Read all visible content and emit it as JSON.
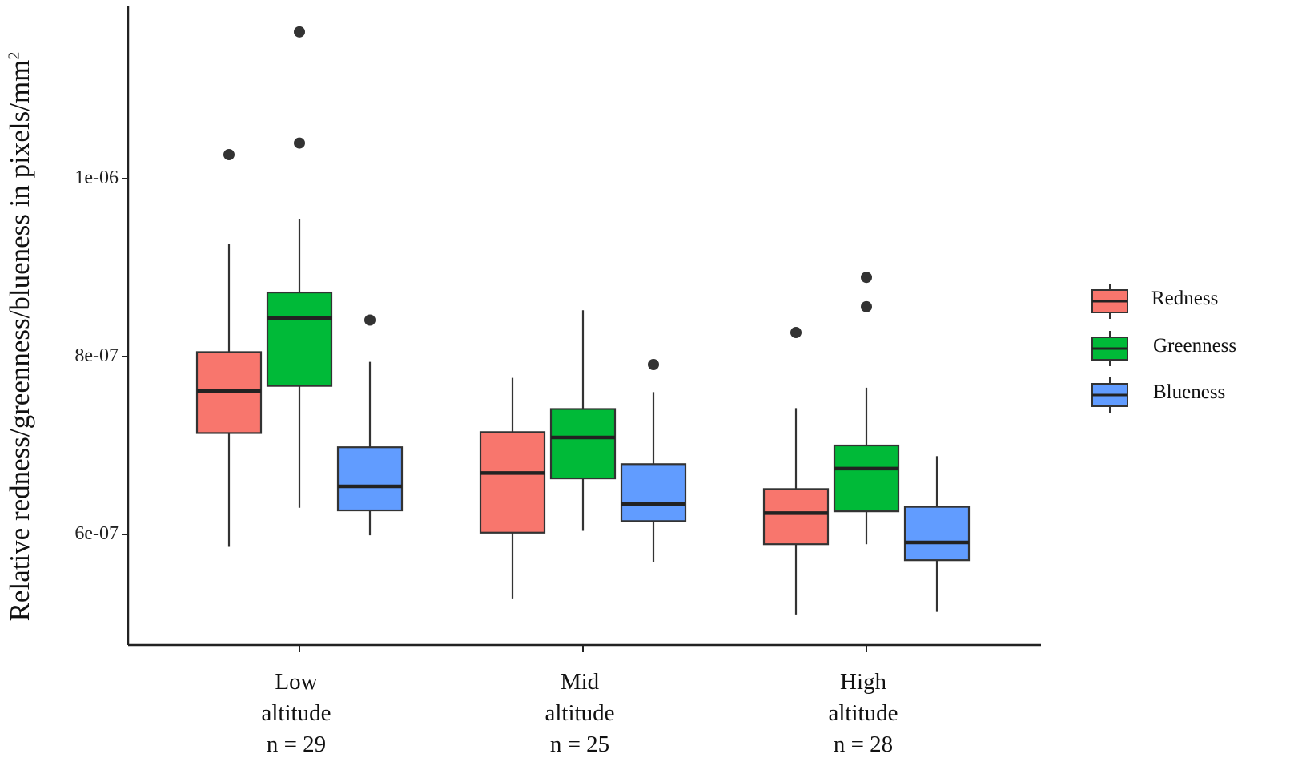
{
  "chart_data": {
    "type": "box",
    "title": "",
    "ylabel": "Relative redness/greenness/blueness in pixels/mm",
    "ylabel_superscript": "2",
    "ylim": [
      4.8e-07,
      1.2e-06
    ],
    "yticks": [
      {
        "value": 6e-07,
        "label": "6e-07"
      },
      {
        "value": 8e-07,
        "label": "8e-07"
      },
      {
        "value": 1e-06,
        "label": "1e-06"
      }
    ],
    "categories": [
      {
        "name": "Low",
        "line2": "altitude",
        "line3": "n = 29"
      },
      {
        "name": "Mid",
        "line2": "altitude",
        "line3": "n = 25"
      },
      {
        "name": "High",
        "line2": "altitude",
        "line3": "n = 28"
      }
    ],
    "series": [
      {
        "name": "Redness",
        "color": "#F8766D",
        "boxes": [
          {
            "min": 5.86e-07,
            "q1": 7.14e-07,
            "median": 7.61e-07,
            "q3": 8.05e-07,
            "max": 9.27e-07,
            "outliers": [
              1.027e-06
            ]
          },
          {
            "min": 5.28e-07,
            "q1": 6.02e-07,
            "median": 6.69e-07,
            "q3": 7.15e-07,
            "max": 7.76e-07,
            "outliers": []
          },
          {
            "min": 5.1e-07,
            "q1": 5.89e-07,
            "median": 6.24e-07,
            "q3": 6.51e-07,
            "max": 7.42e-07,
            "outliers": [
              8.27e-07
            ]
          }
        ]
      },
      {
        "name": "Greenness",
        "color": "#00BA38",
        "boxes": [
          {
            "min": 6.3e-07,
            "q1": 7.67e-07,
            "median": 8.43e-07,
            "q3": 8.72e-07,
            "max": 9.55e-07,
            "outliers": [
              1.04e-06,
              1.165e-06
            ]
          },
          {
            "min": 6.04e-07,
            "q1": 6.63e-07,
            "median": 7.09e-07,
            "q3": 7.41e-07,
            "max": 8.52e-07,
            "outliers": []
          },
          {
            "min": 5.89e-07,
            "q1": 6.26e-07,
            "median": 6.74e-07,
            "q3": 7e-07,
            "max": 7.65e-07,
            "outliers": [
              8.56e-07,
              8.89e-07
            ]
          }
        ]
      },
      {
        "name": "Blueness",
        "color": "#619CFF",
        "boxes": [
          {
            "min": 5.99e-07,
            "q1": 6.27e-07,
            "median": 6.54e-07,
            "q3": 6.98e-07,
            "max": 7.94e-07,
            "outliers": [
              8.41e-07
            ]
          },
          {
            "min": 5.69e-07,
            "q1": 6.15e-07,
            "median": 6.34e-07,
            "q3": 6.79e-07,
            "max": 7.6e-07,
            "outliers": [
              7.91e-07
            ]
          },
          {
            "min": 5.13e-07,
            "q1": 5.71e-07,
            "median": 5.91e-07,
            "q3": 6.31e-07,
            "max": 6.88e-07,
            "outliers": []
          }
        ]
      }
    ],
    "legend": {
      "position": "right",
      "items": [
        "Redness",
        "Greenness",
        "Blueness"
      ]
    }
  }
}
